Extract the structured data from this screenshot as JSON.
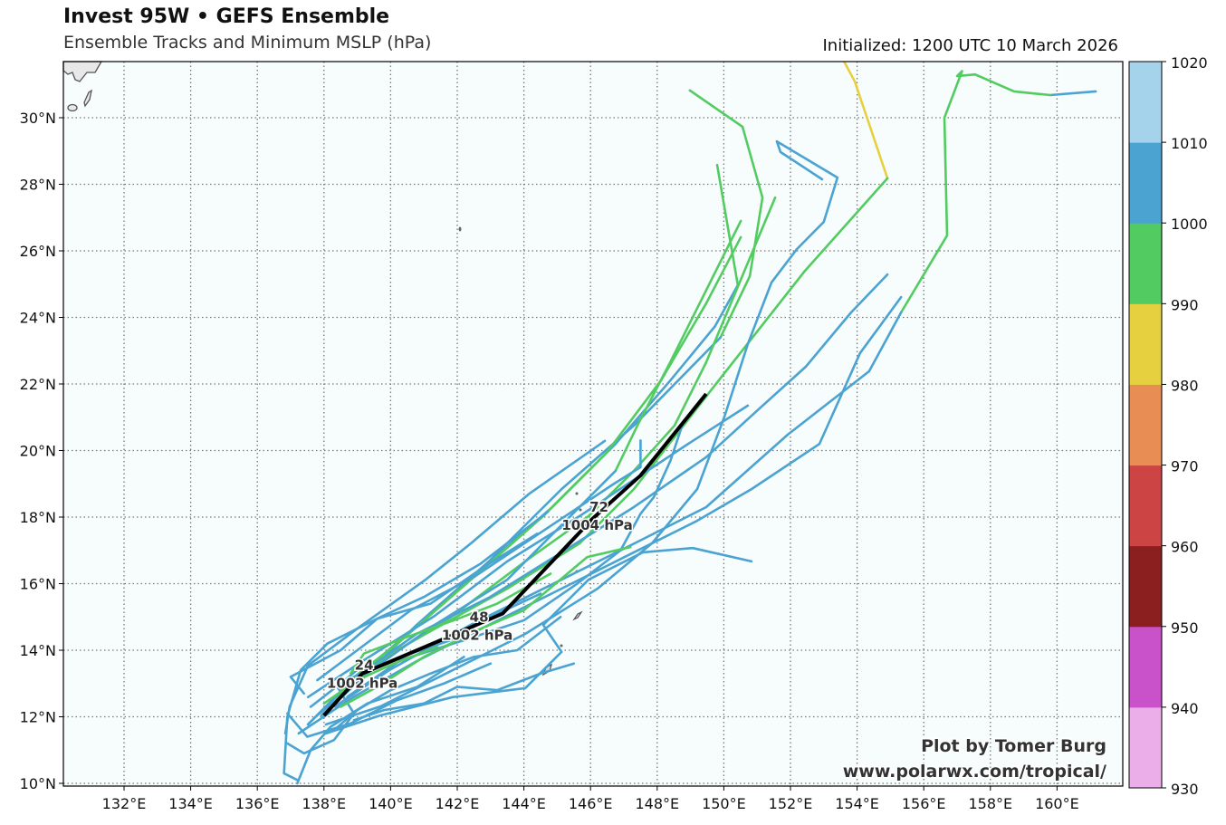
{
  "header": {
    "title": "Invest 95W • GEFS Ensemble",
    "subtitle": "Ensemble Tracks and Minimum MSLP (hPa)",
    "initialized": "Initialized: 1200 UTC 10 March 2026"
  },
  "watermark": {
    "line1": "Plot by Tomer Burg",
    "line2": "www.polarwx.com/tropical/"
  },
  "chart_data": {
    "type": "map-tracks",
    "lon_range": [
      130.2,
      162.0
    ],
    "lat_range": [
      9.9,
      31.7
    ],
    "lon_ticks": [
      132,
      134,
      136,
      138,
      140,
      142,
      144,
      146,
      148,
      150,
      152,
      154,
      156,
      158,
      160
    ],
    "lat_ticks": [
      10,
      12,
      14,
      16,
      18,
      20,
      22,
      24,
      26,
      28,
      30
    ],
    "lon_tick_labels": [
      "132°E",
      "134°E",
      "136°E",
      "138°E",
      "140°E",
      "142°E",
      "144°E",
      "146°E",
      "148°E",
      "150°E",
      "152°E",
      "154°E",
      "156°E",
      "158°E",
      "160°E"
    ],
    "lat_tick_labels": [
      "10°N",
      "12°N",
      "14°N",
      "16°N",
      "18°N",
      "20°N",
      "22°N",
      "24°N",
      "26°N",
      "28°N",
      "30°N"
    ],
    "grid": true,
    "colorbar": {
      "levels": [
        930,
        940,
        950,
        960,
        970,
        980,
        990,
        1000,
        1010,
        1020
      ],
      "labels": [
        "930",
        "940",
        "950",
        "960",
        "970",
        "980",
        "990",
        "1000",
        "1010",
        "1020"
      ],
      "colors": [
        "#ecaee8",
        "#c951c9",
        "#8b1f1f",
        "#cc4444",
        "#e88e55",
        "#e6d040",
        "#52cc60",
        "#4aa3d1",
        "#a6d3ec"
      ]
    },
    "mean_track": {
      "color": "#000000",
      "points": [
        [
          138.0,
          12.04
        ],
        [
          139.15,
          13.3
        ],
        [
          141.5,
          14.3
        ],
        [
          143.36,
          15.1
        ],
        [
          144.85,
          16.67
        ],
        [
          146.08,
          17.97
        ],
        [
          147.5,
          19.25
        ],
        [
          149.47,
          21.7
        ]
      ],
      "labels": [
        {
          "hour": "24",
          "pressure": "1002 hPa",
          "lon": 139.15,
          "lat": 13.3
        },
        {
          "hour": "48",
          "pressure": "1002 hPa",
          "lon": 142.6,
          "lat": 14.75
        },
        {
          "hour": "72",
          "pressure": "1004 hPa",
          "lon": 146.2,
          "lat": 18.05
        }
      ]
    },
    "tracks": [
      {
        "mslp": 985,
        "points": [
          [
            153.55,
            31.8
          ],
          [
            153.93,
            31.09
          ],
          [
            154.91,
            28.18
          ]
        ]
      },
      {
        "mslp": 995,
        "points": [
          [
            154.91,
            28.18
          ],
          [
            152.41,
            25.37
          ],
          [
            149.74,
            21.97
          ],
          [
            147.3,
            18.84
          ],
          [
            145.67,
            17.21
          ],
          [
            143.5,
            15.85
          ],
          [
            141.05,
            14.49
          ],
          [
            139.15,
            13.4
          ],
          [
            138.0,
            12.04
          ]
        ]
      },
      {
        "mslp": 1004,
        "points": [
          [
            161.16,
            30.79
          ],
          [
            159.8,
            30.68
          ]
        ]
      },
      {
        "mslp": 995,
        "points": [
          [
            159.8,
            30.68
          ],
          [
            158.71,
            30.79
          ],
          [
            157.54,
            31.3
          ],
          [
            157.0,
            31.25
          ],
          [
            157.15,
            31.4
          ],
          [
            156.62,
            30.0
          ],
          [
            156.7,
            26.46
          ],
          [
            155.32,
            24.15
          ]
        ]
      },
      {
        "mslp": 1004,
        "points": [
          [
            155.32,
            24.15
          ],
          [
            154.36,
            22.38
          ],
          [
            151.92,
            20.48
          ],
          [
            149.47,
            18.3
          ],
          [
            147.3,
            17.2
          ],
          [
            145.13,
            16.12
          ],
          [
            142.4,
            14.76
          ],
          [
            139.96,
            13.4
          ],
          [
            138.33,
            12.31
          ]
        ]
      },
      {
        "mslp": 995,
        "points": [
          [
            148.98,
            30.82
          ],
          [
            150.56,
            29.73
          ],
          [
            151.16,
            27.6
          ],
          [
            150.78,
            25.24
          ],
          [
            149.9,
            23.4
          ]
        ]
      },
      {
        "mslp": 1004,
        "points": [
          [
            149.9,
            23.4
          ],
          [
            147.3,
            20.75
          ],
          [
            145.13,
            18.84
          ],
          [
            142.95,
            16.67
          ],
          [
            140.78,
            14.76
          ],
          [
            139.15,
            13.13
          ],
          [
            137.79,
            12.04
          ]
        ]
      },
      {
        "mslp": 995,
        "points": [
          [
            149.8,
            28.58
          ],
          [
            150.42,
            24.97
          ]
        ]
      },
      {
        "mslp": 1004,
        "points": [
          [
            150.42,
            24.97
          ],
          [
            149.74,
            23.74
          ],
          [
            148.39,
            22.1
          ],
          [
            146.75,
            20.2
          ],
          [
            144.85,
            18.3
          ],
          [
            142.68,
            16.4
          ],
          [
            140.5,
            14.49
          ],
          [
            138.6,
            12.86
          ],
          [
            137.52,
            11.77
          ]
        ]
      },
      {
        "mslp": 995,
        "points": [
          [
            151.54,
            27.6
          ],
          [
            149.47,
            22.65
          ],
          [
            148.52,
            20.75
          ],
          [
            147.3,
            19.39
          ],
          [
            145.94,
            18.03
          ],
          [
            144.04,
            16.67
          ],
          [
            141.86,
            15.03
          ],
          [
            139.69,
            13.67
          ],
          [
            138.2,
            12.45
          ]
        ]
      },
      {
        "mslp": 995,
        "points": [
          [
            150.51,
            26.9
          ],
          [
            148.39,
            22.65
          ],
          [
            147.43,
            20.8
          ],
          [
            146.75,
            19.39
          ]
        ]
      },
      {
        "mslp": 1004,
        "points": [
          [
            146.75,
            19.39
          ],
          [
            145.13,
            17.76
          ],
          [
            143.5,
            16.12
          ],
          [
            141.32,
            14.76
          ],
          [
            139.42,
            13.4
          ],
          [
            137.92,
            12.04
          ]
        ]
      },
      {
        "mslp": 995,
        "points": [
          [
            150.51,
            26.41
          ],
          [
            149.47,
            24.42
          ],
          [
            148.11,
            22.1
          ],
          [
            146.48,
            19.93
          ],
          [
            144.58,
            18.03
          ],
          [
            142.41,
            16.12
          ],
          [
            140.23,
            14.22
          ],
          [
            138.47,
            12.86
          ]
        ]
      },
      {
        "mslp": 1004,
        "points": [
          [
            152.95,
            28.15
          ],
          [
            151.7,
            28.97
          ],
          [
            151.59,
            29.29
          ],
          [
            153.41,
            28.2
          ],
          [
            153.0,
            26.87
          ],
          [
            152.19,
            26.05
          ],
          [
            151.43,
            25.05
          ],
          [
            150.72,
            23.2
          ],
          [
            150.02,
            21.02
          ],
          [
            149.2,
            18.84
          ],
          [
            147.84,
            17.21
          ],
          [
            146.21,
            15.85
          ],
          [
            144.04,
            14.49
          ],
          [
            141.86,
            13.4
          ],
          [
            139.69,
            12.31
          ],
          [
            138.06,
            11.77
          ]
        ]
      },
      {
        "mslp": 1004,
        "points": [
          [
            154.91,
            25.29
          ],
          [
            153.82,
            24.15
          ],
          [
            152.46,
            22.52
          ],
          [
            151.1,
            21.29
          ],
          [
            149.47,
            19.8
          ],
          [
            147.3,
            18.3
          ],
          [
            145.13,
            16.94
          ],
          [
            142.95,
            15.58
          ],
          [
            140.78,
            14.49
          ],
          [
            138.88,
            13.13
          ],
          [
            137.52,
            11.77
          ]
        ]
      },
      {
        "mslp": 1004,
        "points": [
          [
            155.32,
            24.61
          ],
          [
            154.09,
            22.93
          ],
          [
            152.87,
            20.2
          ],
          [
            150.83,
            18.84
          ],
          [
            149.2,
            17.89
          ],
          [
            147.3,
            16.94
          ],
          [
            145.13,
            15.85
          ],
          [
            142.95,
            14.76
          ],
          [
            140.78,
            13.67
          ],
          [
            138.88,
            12.59
          ],
          [
            137.24,
            11.5
          ]
        ]
      },
      {
        "mslp": 1004,
        "points": [
          [
            150.72,
            21.35
          ],
          [
            148.93,
            20.2
          ],
          [
            147.3,
            19.12
          ],
          [
            145.67,
            18.03
          ],
          [
            143.5,
            16.67
          ],
          [
            141.32,
            15.03
          ],
          [
            139.15,
            13.67
          ],
          [
            137.52,
            12.59
          ]
        ]
      },
      {
        "mslp": 1004,
        "points": [
          [
            150.83,
            16.67
          ],
          [
            149.07,
            17.07
          ],
          [
            147.57,
            16.94
          ],
          [
            145.94,
            16.12
          ],
          [
            144.58,
            14.76
          ],
          [
            145.13,
            13.95
          ],
          [
            144.04,
            12.86
          ],
          [
            141.86,
            12.59
          ],
          [
            139.69,
            12.04
          ],
          [
            138.06,
            11.5
          ]
        ]
      },
      {
        "mslp": 1004,
        "points": [
          [
            146.43,
            20.29
          ],
          [
            144.17,
            18.71
          ],
          [
            142.41,
            17.21
          ],
          [
            141.05,
            16.12
          ],
          [
            139.15,
            14.76
          ],
          [
            137.52,
            13.54
          ],
          [
            136.97,
            12.31
          ],
          [
            136.84,
            11.5
          ]
        ]
      },
      {
        "mslp": 1004,
        "points": [
          [
            144.72,
            18.16
          ],
          [
            142.7,
            16.6
          ],
          [
            141.0,
            15.6
          ],
          [
            139.7,
            15.0
          ],
          [
            138.1,
            14.2
          ],
          [
            137.3,
            13.4
          ],
          [
            136.9,
            12.0
          ],
          [
            136.8,
            10.3
          ],
          [
            137.2,
            10.1
          ]
        ]
      },
      {
        "mslp": 1004,
        "points": [
          [
            148.8,
            20.9
          ],
          [
            148.4,
            19.7
          ],
          [
            147.9,
            18.6
          ],
          [
            147.5,
            18.1
          ],
          [
            146.9,
            17.0
          ],
          [
            145.6,
            16.0
          ],
          [
            144.0,
            14.9
          ],
          [
            142.2,
            14.3
          ],
          [
            140.3,
            13.7
          ],
          [
            138.7,
            12.6
          ]
        ]
      },
      {
        "mslp": 1004,
        "points": [
          [
            147.5,
            20.3
          ],
          [
            147.5,
            19.5
          ],
          [
            146.7,
            19.0
          ],
          [
            144.6,
            17.6
          ],
          [
            142.5,
            16.2
          ],
          [
            140.6,
            15.2
          ],
          [
            139.0,
            14.0
          ],
          [
            137.8,
            13.1
          ]
        ]
      },
      {
        "mslp": 1004,
        "points": [
          [
            137.6,
            12.3
          ],
          [
            138.5,
            13.0
          ],
          [
            139.3,
            13.4
          ],
          [
            140.6,
            13.9
          ],
          [
            141.8,
            14.3
          ],
          [
            143.0,
            15.0
          ],
          [
            144.5,
            15.7
          ]
        ]
      },
      {
        "mslp": 1004,
        "points": [
          [
            138.3,
            11.6
          ],
          [
            139.0,
            12.2
          ],
          [
            140.0,
            12.8
          ],
          [
            141.2,
            13.3
          ],
          [
            142.5,
            13.8
          ],
          [
            143.8,
            14.0
          ],
          [
            145.1,
            15.0
          ]
        ]
      },
      {
        "mslp": 1004,
        "points": [
          [
            137.4,
            12.7
          ],
          [
            137.0,
            13.2
          ],
          [
            138.5,
            14.0
          ],
          [
            139.6,
            14.95
          ],
          [
            141.2,
            15.4
          ],
          [
            142.8,
            16.5
          ],
          [
            144.4,
            17.5
          ]
        ]
      },
      {
        "mslp": 1004,
        "points": [
          [
            138.9,
            11.9
          ],
          [
            139.8,
            12.2
          ],
          [
            141.0,
            12.4
          ],
          [
            142.0,
            12.9
          ],
          [
            143.2,
            12.8
          ],
          [
            144.5,
            13.3
          ],
          [
            145.5,
            13.6
          ]
        ]
      },
      {
        "mslp": 1004,
        "points": [
          [
            136.9,
            12.1
          ],
          [
            137.5,
            11.4
          ],
          [
            138.8,
            11.8
          ],
          [
            140.2,
            12.5
          ],
          [
            141.6,
            13.0
          ],
          [
            143.0,
            13.6
          ]
        ]
      },
      {
        "mslp": 1004,
        "points": [
          [
            137.2,
            10.0
          ],
          [
            137.6,
            11.0
          ],
          [
            138.2,
            11.7
          ],
          [
            139.3,
            12.4
          ],
          [
            140.8,
            12.9
          ],
          [
            142.2,
            13.8
          ]
        ]
      },
      {
        "mslp": 1004,
        "points": [
          [
            136.9,
            11.2
          ],
          [
            137.4,
            10.9
          ],
          [
            138.3,
            11.3
          ],
          [
            138.9,
            12.1
          ],
          [
            138.4,
            12.9
          ],
          [
            139.1,
            13.5
          ]
        ]
      },
      {
        "mslp": 995,
        "points": [
          [
            138.8,
            13.3
          ],
          [
            139.2,
            13.9
          ],
          [
            140.5,
            14.4
          ],
          [
            141.9,
            14.9
          ],
          [
            143.2,
            15.4
          ],
          [
            144.8,
            16.3
          ]
        ]
      },
      {
        "mslp": 995,
        "points": [
          [
            138.5,
            12.3
          ],
          [
            139.6,
            12.9
          ],
          [
            141.0,
            13.8
          ],
          [
            142.6,
            14.6
          ],
          [
            144.0,
            15.2
          ],
          [
            145.9,
            16.8
          ],
          [
            147.2,
            17.1
          ]
        ]
      },
      {
        "mslp": 995,
        "points": [
          [
            138.0,
            12.4
          ],
          [
            139.0,
            13.1
          ],
          [
            140.1,
            13.6
          ],
          [
            141.4,
            14.1
          ]
        ]
      }
    ]
  }
}
